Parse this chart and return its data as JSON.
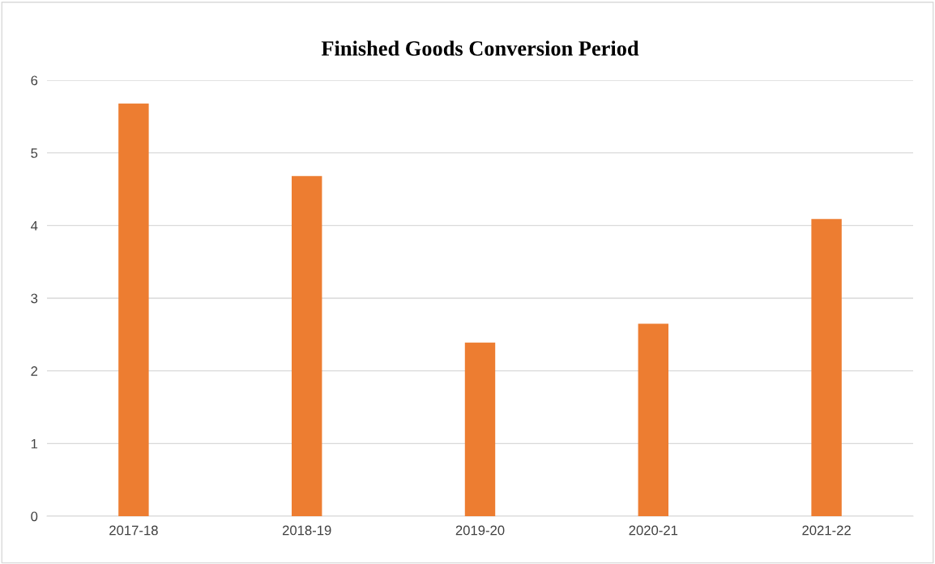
{
  "chart_data": {
    "type": "bar",
    "title": "Finished Goods Conversion Period",
    "categories": [
      "2017-18",
      "2018-19",
      "2019-20",
      "2020-21",
      "2021-22"
    ],
    "values": [
      5.68,
      4.68,
      2.39,
      2.65,
      4.09
    ],
    "color": "#ed7d31",
    "ylim": [
      0,
      6
    ],
    "yticks": [
      0,
      1,
      2,
      3,
      4,
      5,
      6
    ],
    "grid": "y",
    "legend": false
  }
}
